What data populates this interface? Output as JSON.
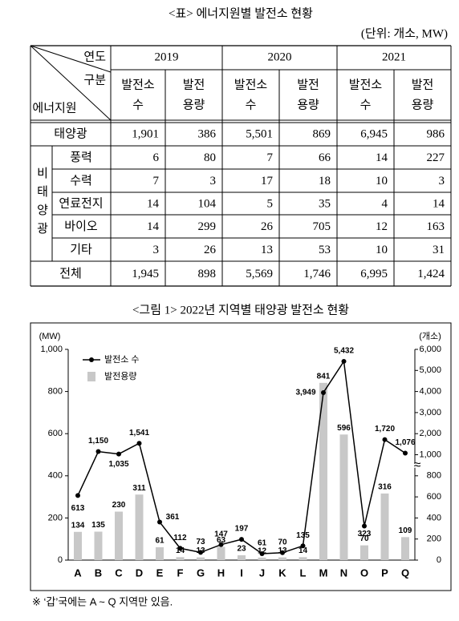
{
  "header": {
    "caption": "<표> 에너지원별 발전소 현황",
    "unit": "(단위: 개소, MW)"
  },
  "table": {
    "year_header": "연도",
    "category_header": "구분",
    "source_header": "에너지원",
    "years": [
      "2019",
      "2020",
      "2021"
    ],
    "subheaders": [
      [
        "발전소",
        "수"
      ],
      [
        "발전",
        "용량"
      ]
    ],
    "rows": [
      {
        "name": "태양광",
        "values": [
          "1,901",
          "386",
          "5,501",
          "869",
          "6,945",
          "986"
        ]
      }
    ],
    "group": {
      "name": "비태양광",
      "rows": [
        {
          "name": "풍력",
          "values": [
            "6",
            "80",
            "7",
            "66",
            "14",
            "227"
          ]
        },
        {
          "name": "수력",
          "values": [
            "7",
            "3",
            "17",
            "18",
            "10",
            "3"
          ]
        },
        {
          "name": "연료전지",
          "values": [
            "14",
            "104",
            "5",
            "35",
            "4",
            "14"
          ]
        },
        {
          "name": "바이오",
          "values": [
            "14",
            "299",
            "26",
            "705",
            "12",
            "163"
          ]
        },
        {
          "name": "기타",
          "values": [
            "3",
            "26",
            "13",
            "53",
            "10",
            "31"
          ]
        }
      ]
    },
    "total": {
      "name": "전체",
      "values": [
        "1,945",
        "898",
        "5,569",
        "1,746",
        "6,995",
        "1,424"
      ]
    }
  },
  "chart_data": {
    "type": "combo",
    "title": "<그림 1> 2022년 지역별 태양광 발전소 현황",
    "ylabel": "(MW)",
    "y2label": "(개소)",
    "categories": [
      "A",
      "B",
      "C",
      "D",
      "E",
      "F",
      "G",
      "H",
      "I",
      "J",
      "K",
      "L",
      "M",
      "N",
      "O",
      "P",
      "Q"
    ],
    "series": [
      {
        "name": "발전소 수",
        "type": "line",
        "axis": "y2",
        "color": "#000000",
        "values": [
          613,
          1150,
          1035,
          1541,
          361,
          112,
          73,
          147,
          197,
          61,
          70,
          135,
          3949,
          5432,
          323,
          1720,
          1076
        ],
        "value_labels": [
          "613",
          "1,150",
          "1,035",
          "1,541",
          "361",
          "112",
          "73",
          "147",
          "197",
          "61",
          "70",
          "135",
          "3,949",
          "5,432",
          "323",
          "1,720",
          "1,076"
        ]
      },
      {
        "name": "발전용량",
        "type": "bar",
        "color": "#c8c8c8",
        "values": [
          134,
          135,
          230,
          311,
          61,
          14,
          13,
          63,
          23,
          12,
          13,
          14,
          841,
          596,
          70,
          316,
          109
        ]
      }
    ],
    "ylim": [
      0,
      1000
    ],
    "yticks": [
      0,
      200,
      400,
      600,
      800,
      {
        "value": 1000,
        "label": "1,000"
      }
    ],
    "y2lim": [
      0,
      6000
    ],
    "y2ticks": [
      0,
      200,
      400,
      600,
      800,
      {
        "value": 1000,
        "label": "1,000"
      },
      {
        "value": 2000,
        "label": "2,000"
      },
      {
        "value": 3000,
        "label": "3,000"
      },
      {
        "value": 4000,
        "label": "4,000"
      },
      {
        "value": 5000,
        "label": "5,000"
      },
      {
        "value": 6000,
        "label": "6,000"
      }
    ],
    "y2_break_label": "≈"
  },
  "footnote": "※ ‘갑’국에는 A ~ Q 지역만 있음."
}
